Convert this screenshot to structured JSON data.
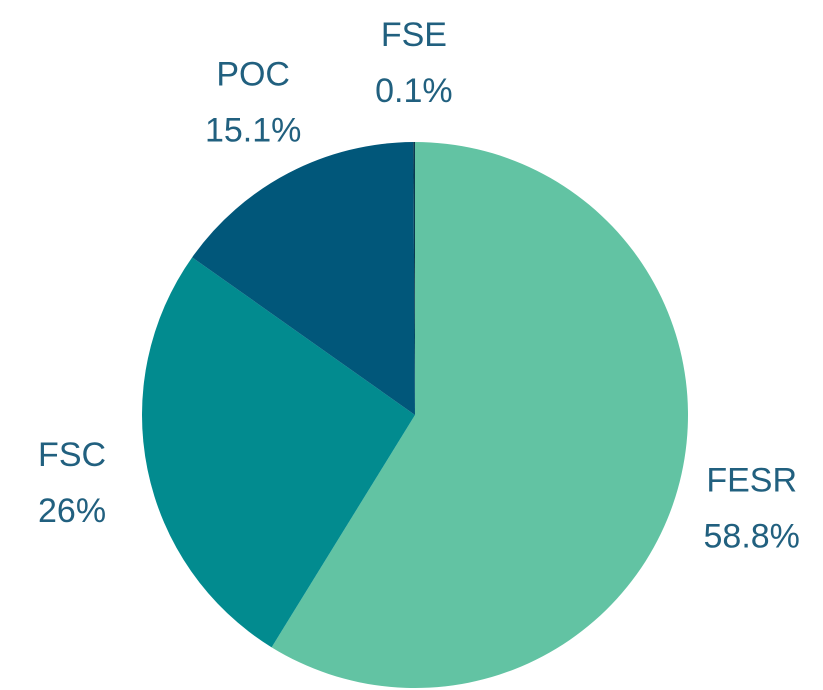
{
  "chart_data": {
    "type": "pie",
    "categories": [
      "FESR",
      "FSC",
      "POC",
      "FSE"
    ],
    "values": [
      58.8,
      26,
      15.1,
      0.1
    ],
    "value_labels": [
      "58.8%",
      "26%",
      "15.1%",
      "0.1%"
    ],
    "colors": [
      "#62c3a3",
      "#028b8f",
      "#01577a",
      "#0b3a4f"
    ]
  }
}
